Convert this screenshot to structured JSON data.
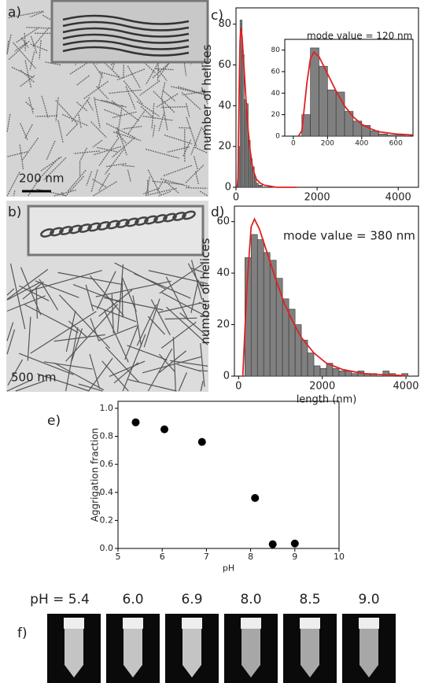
{
  "panel_labels": {
    "a": "a)",
    "b": "b)",
    "c": "c)",
    "d": "d)",
    "e": "e)",
    "f": "f)"
  },
  "images": {
    "a": {
      "scale_bar": "200 nm"
    },
    "b": {
      "scale_bar": "500 nm"
    }
  },
  "photos": {
    "labels": [
      "pH = 5.4",
      "6.0",
      "6.9",
      "8.0",
      "8.5",
      "9.0"
    ]
  },
  "chart_data": [
    {
      "type": "histogram",
      "ylabel": "number of helices",
      "bins": [
        50,
        100,
        150,
        200,
        250,
        300,
        350,
        400,
        450,
        500,
        550,
        600,
        650
      ],
      "values": [
        20,
        82,
        65,
        43,
        41,
        23,
        14,
        10,
        5,
        2,
        1,
        1
      ],
      "color": "#808080",
      "fit": {
        "color": "#e02020",
        "x": [
          30,
          50,
          80,
          100,
          120,
          150,
          200,
          250,
          300,
          350,
          400,
          450,
          500,
          600,
          700,
          1000,
          1500
        ],
        "values": [
          0,
          5,
          50,
          72,
          78,
          74,
          58,
          42,
          28,
          18,
          11,
          7,
          4,
          2,
          1,
          0,
          0
        ]
      },
      "xlim": [
        0,
        4500
      ],
      "xticks": [
        0,
        2000,
        4000
      ],
      "ylim": [
        0,
        88
      ],
      "yticks": [
        0,
        20,
        40,
        60,
        80
      ]
    },
    {
      "type": "histogram",
      "annotation": "mode value = 120 nm",
      "bins": [
        50,
        100,
        150,
        200,
        250,
        300,
        350,
        400,
        450,
        500,
        550,
        600,
        650
      ],
      "values": [
        20,
        82,
        65,
        43,
        41,
        23,
        14,
        10,
        5,
        2,
        1,
        1
      ],
      "color": "#808080",
      "fit": {
        "color": "#e02020",
        "x": [
          30,
          50,
          80,
          100,
          120,
          150,
          200,
          250,
          300,
          350,
          400,
          450,
          500,
          600,
          700
        ],
        "values": [
          0,
          5,
          50,
          72,
          78,
          74,
          58,
          42,
          28,
          18,
          11,
          7,
          4,
          2,
          1
        ]
      },
      "xlim": [
        -50,
        700
      ],
      "xticks": [
        0,
        200,
        400,
        600
      ],
      "ylim": [
        0,
        90
      ],
      "yticks": [
        0,
        20,
        40,
        60,
        80
      ]
    },
    {
      "type": "histogram",
      "ylabel": "number of helices",
      "xlabel": "length (nm)",
      "annotation": "mode value = 380 nm",
      "bins": [
        150,
        300,
        450,
        600,
        750,
        900,
        1050,
        1200,
        1350,
        1500,
        1650,
        1800,
        1950,
        2100,
        2250,
        2400,
        2550,
        2700,
        2850,
        3000,
        3150,
        3300,
        3450,
        3600,
        3750,
        3900,
        4050
      ],
      "values": [
        46,
        55,
        53,
        48,
        45,
        38,
        30,
        26,
        20,
        14,
        9,
        4,
        3,
        5,
        3,
        2,
        2,
        1,
        2,
        1,
        1,
        0,
        2,
        1,
        0,
        1
      ],
      "color": "#808080",
      "fit": {
        "color": "#e02020",
        "x": [
          100,
          200,
          300,
          380,
          500,
          700,
          900,
          1100,
          1300,
          1500,
          1800,
          2100,
          2500,
          3000,
          3500,
          4000
        ],
        "values": [
          0,
          35,
          58,
          61,
          57,
          47,
          37,
          28,
          21,
          15,
          9,
          5,
          2.5,
          1,
          0.5,
          0.2
        ]
      },
      "xlim": [
        -100,
        4300
      ],
      "xticks": [
        0,
        2000,
        4000
      ],
      "ylim": [
        0,
        66
      ],
      "yticks": [
        0,
        20,
        40,
        60
      ]
    },
    {
      "type": "scatter",
      "ylabel": "Aggrigation fraction",
      "xlabel": "pH",
      "color": "#000000",
      "x": [
        5.4,
        6.05,
        6.9,
        8.1,
        8.5,
        9.0
      ],
      "values": [
        0.9,
        0.85,
        0.76,
        0.36,
        0.03,
        0.035
      ],
      "xlim": [
        5,
        10
      ],
      "xticks": [
        5,
        6,
        7,
        8,
        9,
        10
      ],
      "ylim": [
        0,
        1.05
      ],
      "yticks": [
        {
          "value": 0,
          "label": "0.0"
        },
        0.2,
        0.4,
        0.6,
        0.8,
        {
          "value": 1,
          "label": "1.0"
        }
      ]
    }
  ]
}
